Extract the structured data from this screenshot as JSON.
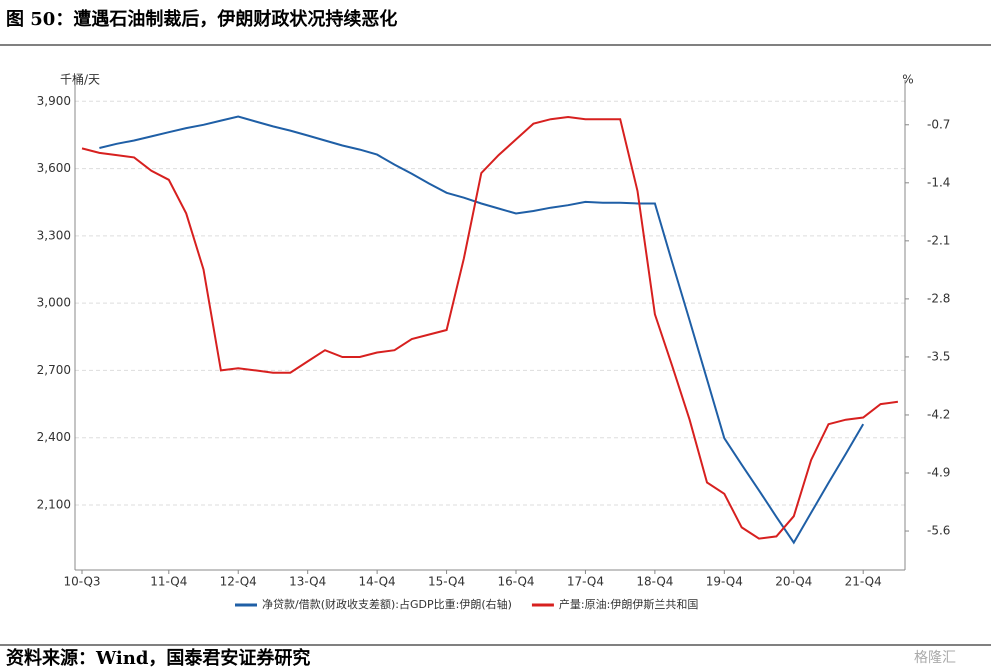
{
  "header": {
    "title": "图 50：遭遇石油制裁后，伊朗财政状况持续恶化"
  },
  "chart_data": {
    "type": "line",
    "y_label": "千桶/天",
    "y2_label": "%",
    "categories": [
      "10-Q3",
      null,
      null,
      null,
      null,
      "11-Q4",
      null,
      null,
      null,
      "12-Q4",
      null,
      null,
      null,
      "13-Q4",
      null,
      null,
      null,
      "14-Q4",
      null,
      null,
      null,
      "15-Q4",
      null,
      null,
      null,
      "16-Q4",
      null,
      null,
      null,
      "17-Q4",
      null,
      null,
      null,
      "18-Q4",
      null,
      null,
      null,
      "19-Q4",
      null,
      null,
      null,
      "20-Q4",
      null,
      null,
      null,
      "21-Q4",
      null,
      null
    ],
    "ylim": [
      1810,
      3995
    ],
    "yticks": [
      {
        "value": 2100,
        "label": "2,100"
      },
      {
        "value": 2400,
        "label": "2,400"
      },
      {
        "value": 2700,
        "label": "2,700"
      },
      {
        "value": 3000,
        "label": "3,000"
      },
      {
        "value": 3300,
        "label": "3,300"
      },
      {
        "value": 3600,
        "label": "3,600"
      },
      {
        "value": 3900,
        "label": "3,900"
      }
    ],
    "y2lim": [
      -6.07,
      -0.16
    ],
    "y2ticks": [
      -5.6,
      -4.9,
      -4.2,
      -3.5,
      -2.8,
      -2.1,
      -1.4,
      -0.7
    ],
    "grid": true,
    "legend": "bottom",
    "series": [
      {
        "name": "净贷款/借款(财政收支差额):占GDP比重:伊朗(右轴)",
        "color": "#1f5fa6",
        "axis": "y2",
        "values": [
          null,
          -0.98,
          -0.93,
          -0.89,
          -0.84,
          -0.79,
          -0.74,
          -0.7,
          -0.65,
          -0.6,
          -0.66,
          -0.72,
          -0.77,
          -0.83,
          -0.89,
          -0.95,
          -1.0,
          -1.06,
          -1.18,
          -1.29,
          -1.41,
          -1.52,
          -1.58,
          -1.65,
          -1.71,
          -1.77,
          -1.74,
          -1.7,
          -1.67,
          -1.63,
          -1.64,
          -1.64,
          -1.65,
          -1.65,
          -2.36,
          -3.06,
          -3.77,
          -4.48,
          -4.8,
          -5.11,
          -5.43,
          -5.74,
          -5.38,
          -5.02,
          -4.67,
          -4.31,
          null,
          null
        ]
      },
      {
        "name": "产量:原油:伊朗伊斯兰共和国",
        "color": "#d7201f",
        "values": [
          3690,
          3670,
          3660,
          3650,
          3590,
          3550,
          3400,
          3150,
          2700,
          2710,
          2700,
          2690,
          2690,
          2740,
          2790,
          2760,
          2760,
          2780,
          2790,
          2840,
          2860,
          2880,
          3200,
          3580,
          3660,
          3730,
          3800,
          3820,
          3830,
          3820,
          3820,
          3820,
          3500,
          2950,
          2720,
          2480,
          2200,
          2150,
          2000,
          1950,
          1960,
          2050,
          2300,
          2460,
          2480,
          2490,
          2550,
          2560
        ]
      }
    ]
  },
  "footer": {
    "source": "资料来源：Wind，国泰君安证券研究",
    "watermark": "格隆汇"
  }
}
